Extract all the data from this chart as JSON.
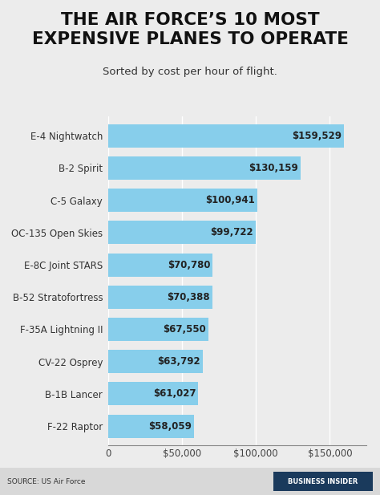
{
  "title": "THE AIR FORCE’S 10 MOST\nEXPENSIVE PLANES TO OPERATE",
  "subtitle": "Sorted by cost per hour of flight.",
  "planes": [
    "E-4 Nightwatch",
    "B-2 Spirit",
    "C-5 Galaxy",
    "OC-135 Open Skies",
    "E-8C Joint STARS",
    "B-52 Stratofortress",
    "F-35A Lightning II",
    "CV-22 Osprey",
    "B-1B Lancer",
    "F-22 Raptor"
  ],
  "values": [
    159529,
    130159,
    100941,
    99722,
    70780,
    70388,
    67550,
    63792,
    61027,
    58059
  ],
  "bar_color": "#87CEEB",
  "bg_color": "#ececec",
  "plot_bg_color": "#ececec",
  "footer_bg_color": "#d8d8d8",
  "title_fontsize": 15.5,
  "subtitle_fontsize": 9.5,
  "label_fontsize": 8.5,
  "value_fontsize": 8.5,
  "source_text": "SOURCE: US Air Force",
  "watermark_text": "BUSINESS INSIDER",
  "xlim": [
    0,
    175000
  ],
  "xticks": [
    0,
    50000,
    100000,
    150000
  ],
  "xtick_labels": [
    "0",
    "$50,000",
    "$100,000",
    "$150,000"
  ]
}
